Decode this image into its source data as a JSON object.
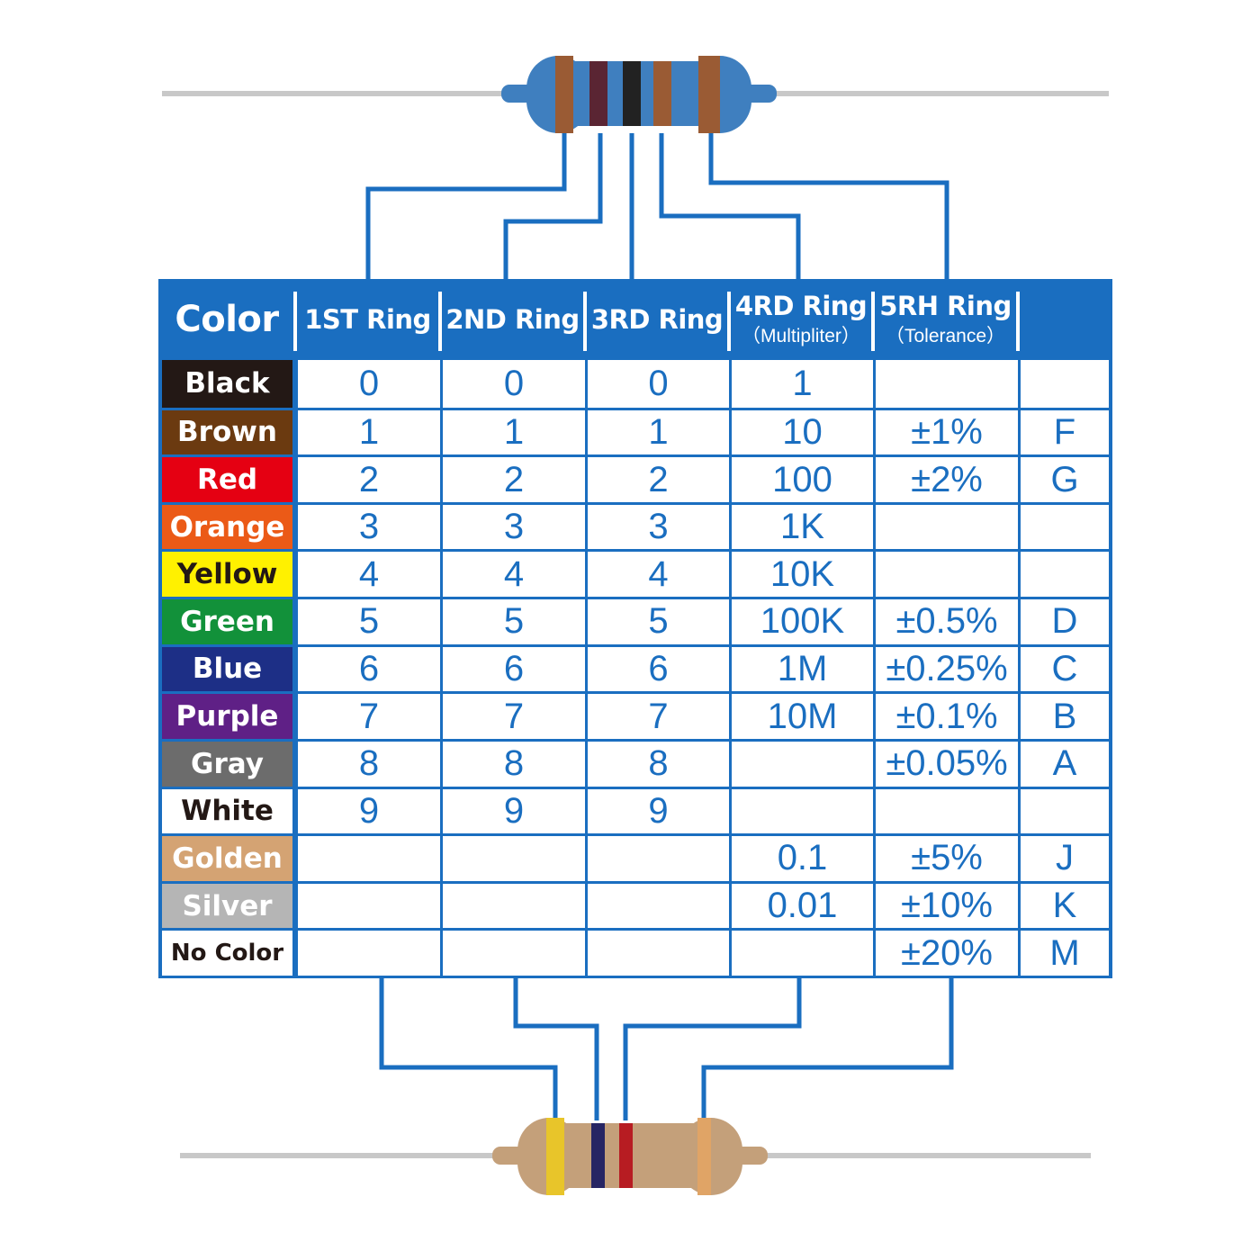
{
  "header": {
    "color": "Color",
    "ring1": "1ST Ring",
    "ring2": "2ND Ring",
    "ring3": "3RD Ring",
    "ring4": "4RD Ring",
    "ring4_sub": "（Multipliter）",
    "ring5": "5RH Ring",
    "ring5_sub": "（Tolerance）"
  },
  "accent": "#1a6ec0",
  "rows": [
    {
      "color": "Black",
      "swatch": "#231815",
      "text": "#ffffff",
      "r1": "0",
      "r2": "0",
      "r3": "0",
      "mult": "1",
      "tol": "",
      "code": ""
    },
    {
      "color": "Brown",
      "swatch": "#6b3a10",
      "text": "#ffffff",
      "r1": "1",
      "r2": "1",
      "r3": "1",
      "mult": "10",
      "tol": "±1%",
      "code": "F"
    },
    {
      "color": "Red",
      "swatch": "#e50012",
      "text": "#ffffff",
      "r1": "2",
      "r2": "2",
      "r3": "2",
      "mult": "100",
      "tol": "±2%",
      "code": "G"
    },
    {
      "color": "Orange",
      "swatch": "#eb5a17",
      "text": "#ffffff",
      "r1": "3",
      "r2": "3",
      "r3": "3",
      "mult": "1K",
      "tol": "",
      "code": ""
    },
    {
      "color": "Yellow",
      "swatch": "#fff100",
      "text": "#231815",
      "r1": "4",
      "r2": "4",
      "r3": "4",
      "mult": "10K",
      "tol": "",
      "code": ""
    },
    {
      "color": "Green",
      "swatch": "#12913a",
      "text": "#ffffff",
      "r1": "5",
      "r2": "5",
      "r3": "5",
      "mult": "100K",
      "tol": "±0.5%",
      "code": "D"
    },
    {
      "color": "Blue",
      "swatch": "#1d2f86",
      "text": "#ffffff",
      "r1": "6",
      "r2": "6",
      "r3": "6",
      "mult": "1M",
      "tol": "±0.25%",
      "code": "C"
    },
    {
      "color": "Purple",
      "swatch": "#5f2086",
      "text": "#ffffff",
      "r1": "7",
      "r2": "7",
      "r3": "7",
      "mult": "10M",
      "tol": "±0.1%",
      "code": "B"
    },
    {
      "color": "Gray",
      "swatch": "#6c6c6c",
      "text": "#ffffff",
      "r1": "8",
      "r2": "8",
      "r3": "8",
      "mult": "",
      "tol": "±0.05%",
      "code": "A"
    },
    {
      "color": "White",
      "swatch": "#ffffff",
      "text": "#231815",
      "r1": "9",
      "r2": "9",
      "r3": "9",
      "mult": "",
      "tol": "",
      "code": ""
    },
    {
      "color": "Golden",
      "swatch": "#d4a373",
      "text": "#ffffff",
      "r1": "",
      "r2": "",
      "r3": "",
      "mult": "0.1",
      "tol": "±5%",
      "code": "J"
    },
    {
      "color": "Silver",
      "swatch": "#b5b5b5",
      "text": "#ffffff",
      "r1": "",
      "r2": "",
      "r3": "",
      "mult": "0.01",
      "tol": "±10%",
      "code": "K"
    },
    {
      "color": "No Color",
      "swatch": "#ffffff",
      "text": "#231815",
      "r1": "",
      "r2": "",
      "r3": "",
      "mult": "",
      "tol": "±20%",
      "code": "M"
    }
  ],
  "resistor_top": {
    "body": "#3f7fbf",
    "bands": [
      "#9a5b34",
      "#5a2533",
      "#222222",
      "#9a5b34",
      "#9a5b34"
    ]
  },
  "resistor_bottom": {
    "body": "#c4a07a",
    "bands": [
      "#e8c52a",
      "#272563",
      "#b71c22",
      "#e0a466"
    ]
  }
}
